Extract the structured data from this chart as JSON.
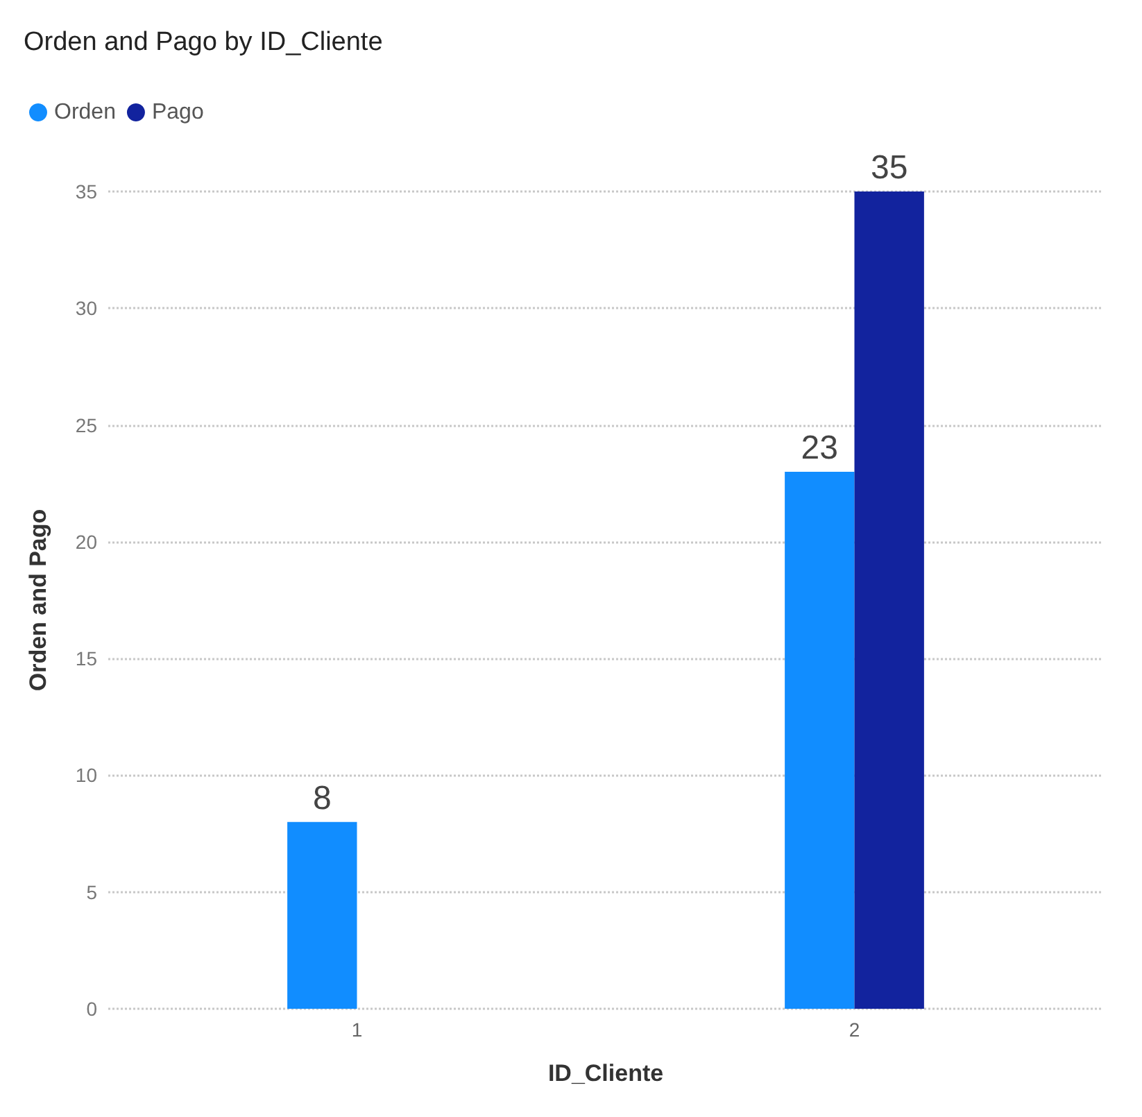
{
  "chart_data": {
    "type": "bar",
    "title": "Orden and Pago by ID_Cliente",
    "xlabel": "ID_Cliente",
    "ylabel": "Orden and Pago",
    "categories": [
      "1",
      "2"
    ],
    "series": [
      {
        "name": "Orden",
        "color": "#118dff",
        "values": [
          8,
          23
        ]
      },
      {
        "name": "Pago",
        "color": "#12239e",
        "values": [
          null,
          35
        ]
      }
    ],
    "ylim": [
      0,
      35
    ],
    "yticks": [
      0,
      5,
      10,
      15,
      20,
      25,
      30,
      35
    ],
    "grid": "y",
    "legend": "top left",
    "data_labels": true
  }
}
